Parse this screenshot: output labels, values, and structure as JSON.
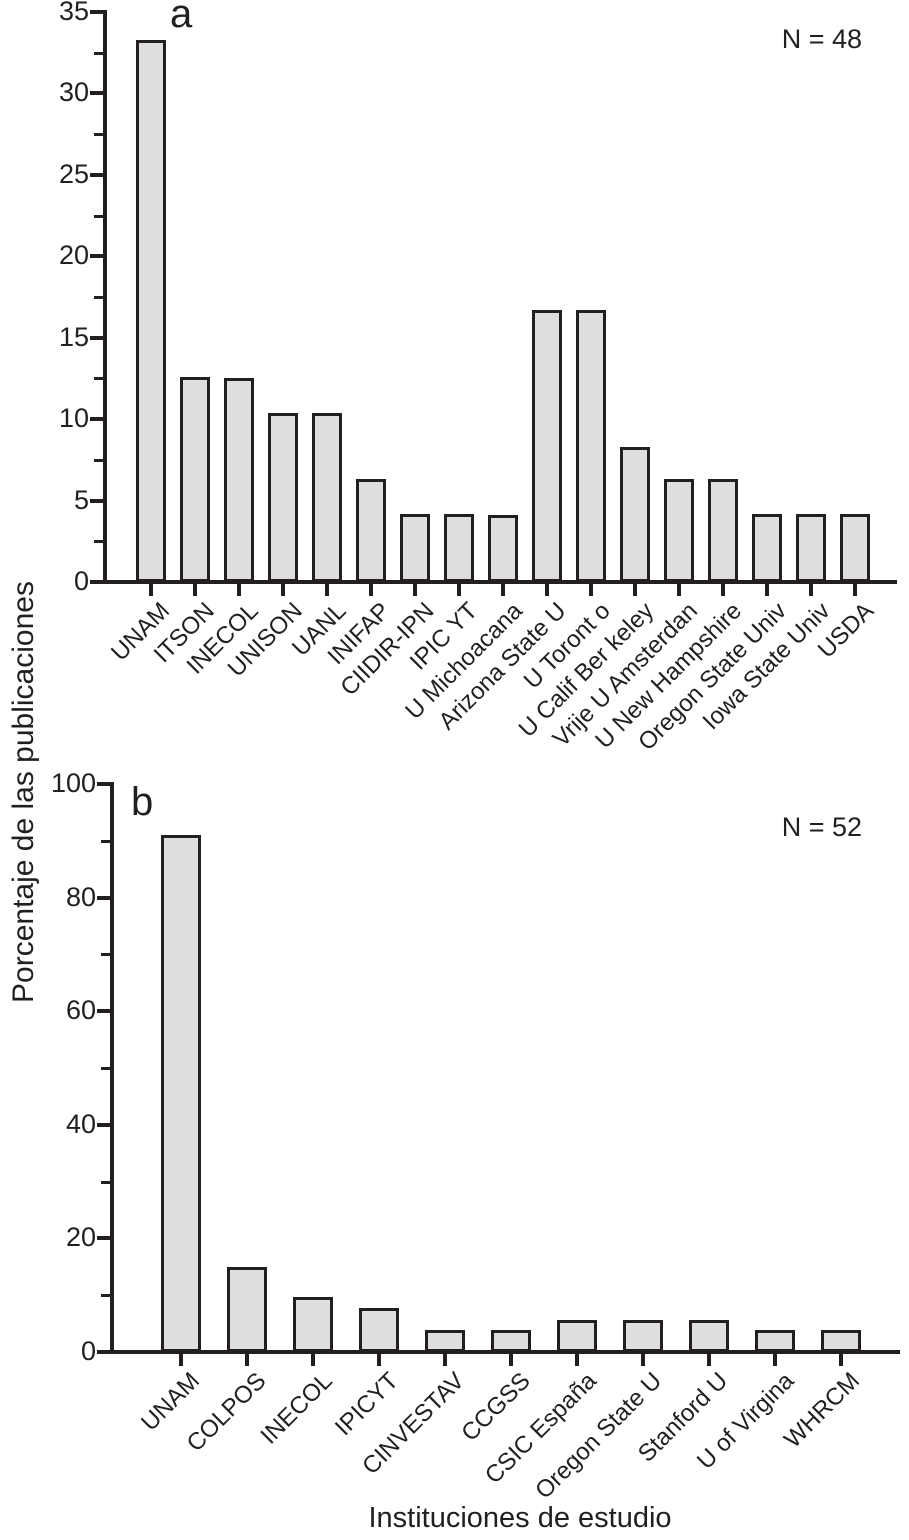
{
  "figure": {
    "ylabel": "Porcentaje de las publicaciones",
    "xlabel": "Instituciones de estudio",
    "colors": {
      "bar_fill": "#dedede",
      "ink": "#231f20",
      "background": "#ffffff"
    }
  },
  "chart_data": [
    {
      "type": "bar",
      "panel_label": "a",
      "annotation": "N = 48",
      "title": "",
      "xlabel": "Instituciones de estudio",
      "ylabel": "Porcentaje de las publicaciones",
      "categories": [
        "UNAM",
        "ITSON",
        "INECOL",
        "UNISON",
        "UANL",
        "INIFAP",
        "CIIDIR-IPN",
        "IPIC YT",
        "U Michoacana",
        "Arizona State U",
        "U Toront o",
        "U Calif Ber keley",
        "Vrije U Amsterdan",
        "U New Hampshire",
        "Oregon State Univ",
        "Iowa State Univ",
        "USDA"
      ],
      "values": [
        33.3,
        12.6,
        12.5,
        10.4,
        10.4,
        6.3,
        4.2,
        4.2,
        4.1,
        16.7,
        16.7,
        8.3,
        6.3,
        6.3,
        4.2,
        4.2,
        4.2
      ],
      "ylim": [
        0,
        35
      ],
      "ytick_major_step": 5,
      "ytick_minor_step": 2.5,
      "grid": false,
      "legend": "none",
      "bar_color": "#dedede"
    },
    {
      "type": "bar",
      "panel_label": "b",
      "annotation": "N = 52",
      "title": "",
      "xlabel": "Instituciones de estudio",
      "ylabel": "Porcentaje de las publicaciones",
      "categories": [
        "UNAM",
        "COLPOS",
        "INECOL",
        "IPICYT",
        "CINVESTAV",
        "CCGSS",
        "CSIC España",
        "Oregon State U",
        "Stanford U",
        "U of Virgina",
        "WHRCM"
      ],
      "values": [
        91,
        15,
        9.6,
        7.7,
        3.8,
        3.8,
        5.7,
        5.7,
        5.7,
        3.8,
        3.8
      ],
      "ylim": [
        0,
        100
      ],
      "ytick_major_step": 20,
      "ytick_minor_step": 10,
      "grid": false,
      "legend": "none",
      "bar_color": "#dedede"
    }
  ]
}
